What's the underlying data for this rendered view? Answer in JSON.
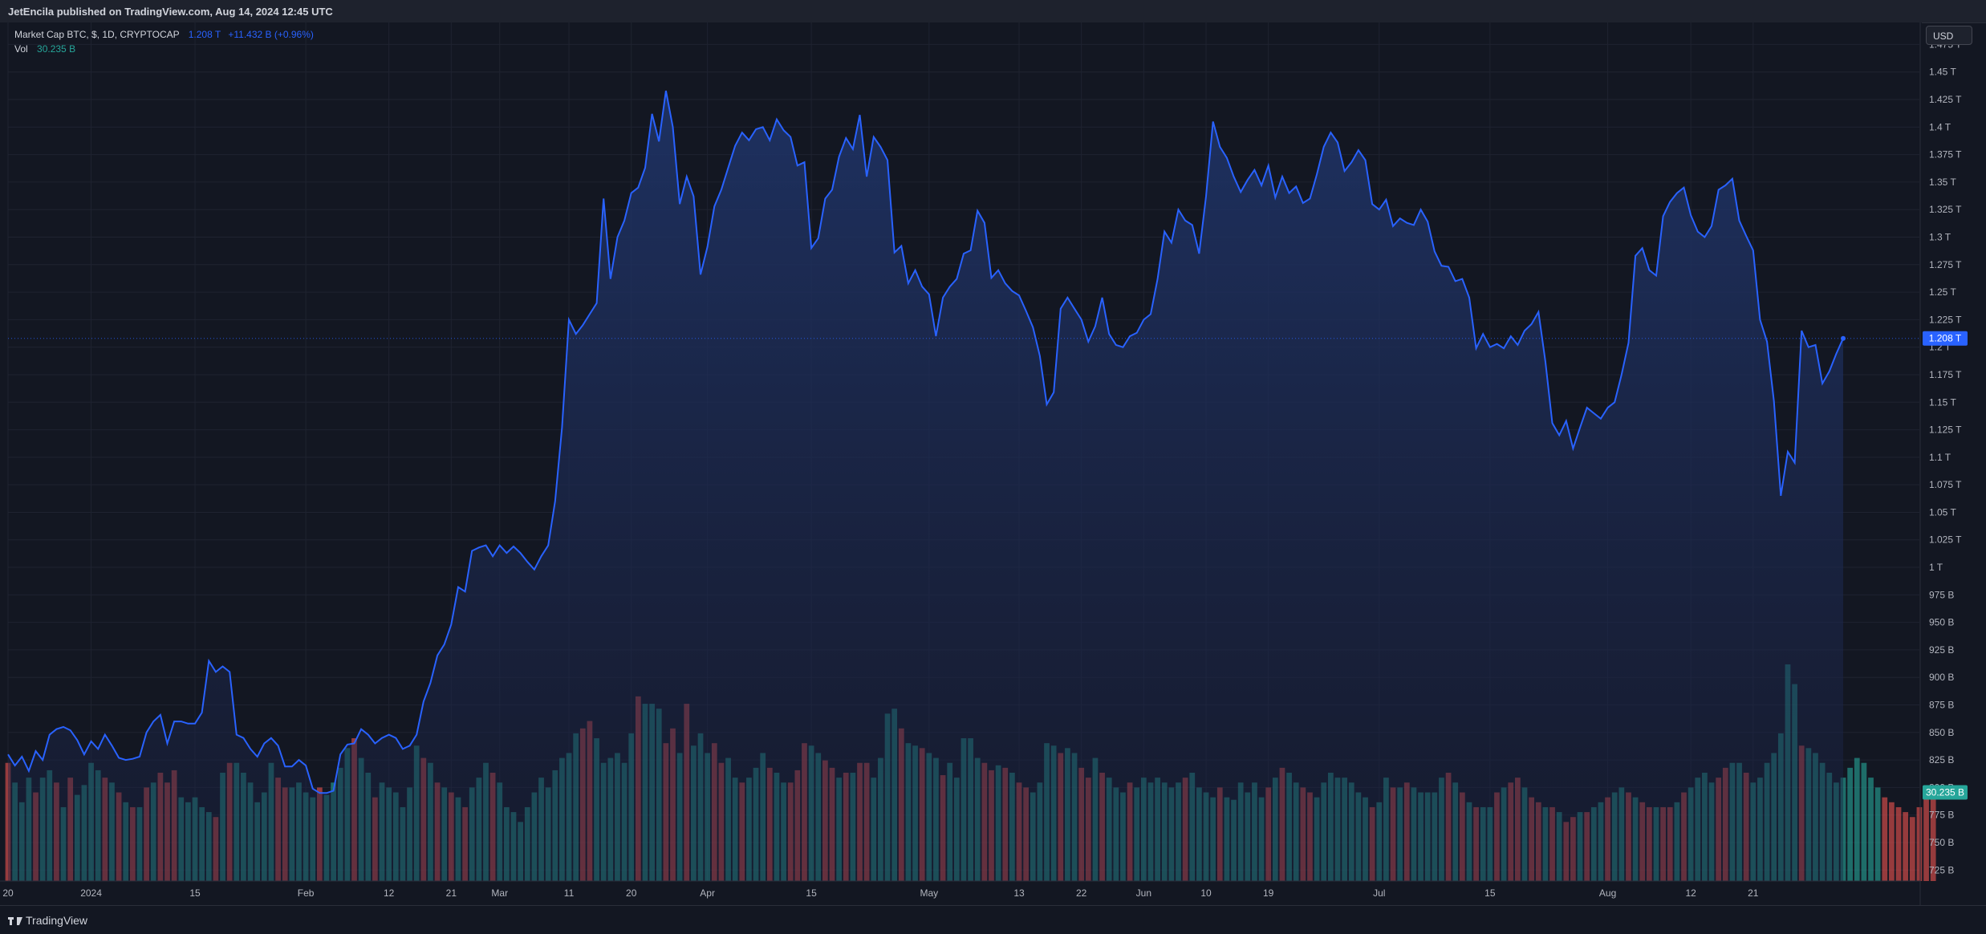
{
  "header": {
    "published_text": "JetEncila published on TradingView.com, Aug 14, 2024 12:45 UTC"
  },
  "legend": {
    "symbol": "Market Cap BTC, $, 1D, CRYPTOCAP",
    "last": "1.208 T",
    "change": "+11.432 B (+0.96%)",
    "vol_label": "Vol",
    "vol_value": "30.235 B"
  },
  "currency_button": "USD",
  "footer": {
    "brand": "TradingView"
  },
  "colors": {
    "line": "#2962ff",
    "area_top": "#1f3468",
    "up": "#26a69a",
    "down": "#ef5350",
    "bg": "#131722",
    "grid": "#1f2330",
    "text": "#b2b5be"
  },
  "chart_data": {
    "type": "area",
    "price_axis": {
      "labels": [
        "1.475 T",
        "1.45 T",
        "1.425 T",
        "1.4 T",
        "1.375 T",
        "1.35 T",
        "1.325 T",
        "1.3 T",
        "1.275 T",
        "1.25 T",
        "1.225 T",
        "1.2 T",
        "1.175 T",
        "1.15 T",
        "1.125 T",
        "1.1 T",
        "1.075 T",
        "1.05 T",
        "1.025 T",
        "1 T",
        "975 B",
        "950 B",
        "925 B",
        "900 B",
        "875 B",
        "850 B",
        "825 B",
        "800 B",
        "775 B",
        "750 B",
        "725 B"
      ],
      "values": [
        1475,
        1450,
        1425,
        1400,
        1375,
        1350,
        1325,
        1300,
        1275,
        1250,
        1225,
        1200,
        1175,
        1150,
        1125,
        1100,
        1075,
        1050,
        1025,
        1000,
        975,
        950,
        925,
        900,
        875,
        850,
        825,
        800,
        775,
        750,
        725
      ],
      "unit": "B",
      "range": [
        715,
        1495
      ],
      "last_label": "1.208 T",
      "last_value": 1208,
      "volume_label": "30.235 B"
    },
    "time_axis": {
      "labels": [
        "20",
        "2024",
        "15",
        "Feb",
        "12",
        "21",
        "Mar",
        "11",
        "20",
        "Apr",
        "15",
        "May",
        "13",
        "22",
        "Jun",
        "10",
        "19",
        "Jul",
        "15",
        "Aug",
        "12",
        "21"
      ],
      "day_index": [
        0,
        12,
        27,
        43,
        55,
        64,
        71,
        81,
        90,
        101,
        116,
        133,
        146,
        155,
        164,
        173,
        182,
        198,
        214,
        231,
        243,
        252
      ]
    },
    "price_series": {
      "name": "Market Cap BTC",
      "start_label": "Dec 15, 2023",
      "values": [
        830,
        820,
        828,
        815,
        833,
        825,
        848,
        853,
        855,
        852,
        843,
        830,
        842,
        835,
        848,
        838,
        827,
        825,
        826,
        828,
        850,
        860,
        866,
        840,
        860,
        860,
        858,
        858,
        868,
        915,
        905,
        910,
        905,
        848,
        845,
        835,
        828,
        840,
        845,
        838,
        819,
        819,
        825,
        820,
        799,
        795,
        795,
        797,
        830,
        839,
        840,
        853,
        848,
        840,
        845,
        848,
        845,
        835,
        838,
        848,
        878,
        895,
        920,
        930,
        948,
        982,
        978,
        1015,
        1018,
        1020,
        1010,
        1020,
        1013,
        1019,
        1013,
        1005,
        998,
        1010,
        1020,
        1060,
        1127,
        1225,
        1212,
        1220,
        1230,
        1240,
        1335,
        1262,
        1300,
        1315,
        1340,
        1345,
        1363,
        1412,
        1387,
        1433,
        1400,
        1330,
        1355,
        1337,
        1266,
        1291,
        1328,
        1343,
        1363,
        1383,
        1395,
        1388,
        1398,
        1400,
        1388,
        1407,
        1397,
        1391,
        1365,
        1368,
        1290,
        1299,
        1335,
        1343,
        1373,
        1390,
        1380,
        1411,
        1355,
        1391,
        1382,
        1370,
        1286,
        1292,
        1258,
        1270,
        1255,
        1248,
        1210,
        1245,
        1255,
        1262,
        1285,
        1288,
        1324,
        1313,
        1263,
        1270,
        1258,
        1251,
        1247,
        1233,
        1218,
        1192,
        1148,
        1159,
        1235,
        1245,
        1235,
        1225,
        1205,
        1219,
        1245,
        1212,
        1202,
        1200,
        1210,
        1213,
        1225,
        1230,
        1262,
        1305,
        1295,
        1325,
        1315,
        1311,
        1285,
        1337,
        1405,
        1382,
        1372,
        1355,
        1341,
        1352,
        1361,
        1347,
        1365,
        1336,
        1355,
        1340,
        1346,
        1331,
        1335,
        1357,
        1382,
        1395,
        1386,
        1360,
        1368,
        1379,
        1370,
        1330,
        1325,
        1334,
        1310,
        1317,
        1313,
        1311,
        1325,
        1314,
        1287,
        1274,
        1273,
        1260,
        1262,
        1245,
        1199,
        1212,
        1200,
        1203,
        1199,
        1210,
        1202,
        1215,
        1221,
        1232,
        1187,
        1131,
        1120,
        1133,
        1108,
        1127,
        1145,
        1140,
        1135,
        1145,
        1150,
        1175,
        1204,
        1283,
        1290,
        1270,
        1265,
        1319,
        1332,
        1340,
        1345,
        1320,
        1305,
        1300,
        1310,
        1343,
        1347,
        1353,
        1315,
        1301,
        1288,
        1225,
        1205,
        1151,
        1065,
        1105,
        1095,
        1215,
        1200,
        1202,
        1167,
        1178,
        1194,
        1208
      ]
    },
    "volume_series": {
      "name": "Vol",
      "up_days": [
        1,
        2,
        3,
        5,
        6,
        8,
        10,
        11,
        12,
        13,
        15,
        17,
        19,
        21,
        25,
        26,
        27,
        28,
        29,
        31,
        33,
        34,
        35,
        36,
        37,
        38,
        41,
        42,
        43,
        44,
        46,
        47,
        48,
        49,
        51,
        52,
        54,
        55,
        56,
        57,
        58,
        59,
        61,
        63,
        65,
        67,
        68,
        69,
        71,
        72,
        73,
        74,
        75,
        76,
        77,
        78,
        79,
        80,
        81,
        82,
        85,
        86,
        87,
        88,
        89,
        90,
        92,
        93,
        94,
        97,
        99,
        100,
        101,
        104,
        105,
        107,
        108,
        109,
        111,
        112,
        116,
        117,
        120,
        122,
        125,
        126,
        127,
        128,
        130,
        131,
        133,
        134,
        136,
        137,
        138,
        139,
        140,
        143,
        145,
        148,
        149,
        150,
        151,
        153,
        154,
        157,
        159,
        160,
        161,
        163,
        164,
        165,
        166,
        167,
        168,
        169,
        171,
        172,
        173,
        174,
        176,
        177,
        178,
        179,
        180,
        181,
        183,
        185,
        186,
        189,
        190,
        191,
        192,
        193,
        194,
        195,
        196,
        198,
        199,
        201,
        203,
        204,
        205,
        206,
        207,
        209,
        211,
        213,
        214,
        216,
        219,
        222,
        224,
        227,
        229,
        230,
        232,
        233,
        235,
        238,
        241,
        243,
        244,
        245,
        246,
        249,
        250,
        252,
        253,
        254,
        255,
        256,
        257,
        258,
        260,
        261,
        262,
        263,
        264,
        265,
        266,
        267,
        268,
        269,
        270
      ],
      "values": [
        48,
        40,
        32,
        42,
        36,
        42,
        45,
        40,
        30,
        42,
        35,
        39,
        48,
        45,
        42,
        40,
        36,
        32,
        30,
        30,
        38,
        40,
        44,
        40,
        45,
        34,
        32,
        34,
        30,
        28,
        26,
        44,
        48,
        48,
        44,
        40,
        32,
        36,
        48,
        42,
        38,
        38,
        40,
        36,
        34,
        38,
        35,
        40,
        46,
        54,
        58,
        50,
        44,
        34,
        40,
        38,
        36,
        30,
        38,
        55,
        50,
        48,
        40,
        38,
        36,
        34,
        30,
        38,
        42,
        48,
        44,
        40,
        30,
        28,
        24,
        30,
        36,
        42,
        38,
        45,
        50,
        52,
        60,
        62,
        65,
        58,
        48,
        50,
        52,
        48,
        60,
        75,
        72,
        72,
        70,
        56,
        62,
        52,
        72,
        55,
        60,
        52,
        56,
        48,
        50,
        42,
        40,
        42,
        46,
        52,
        46,
        44,
        40,
        40,
        45,
        56,
        55,
        52,
        49,
        46,
        42,
        44,
        44,
        48,
        48,
        42,
        50,
        68,
        70,
        62,
        56,
        55,
        54,
        52,
        50,
        43,
        48,
        42,
        58,
        58,
        50,
        48,
        45,
        47,
        46,
        44,
        40,
        38,
        36,
        40,
        56,
        55,
        52,
        54,
        52,
        46,
        42,
        50,
        44,
        42,
        38,
        36,
        40,
        38,
        42,
        40,
        42,
        40,
        38,
        40,
        42,
        44,
        38,
        36,
        34,
        38,
        34,
        33,
        40,
        36,
        40,
        34,
        38,
        42,
        46,
        44,
        40,
        38,
        36,
        34,
        40,
        44,
        42,
        42,
        40,
        36,
        34,
        30,
        32,
        42,
        38,
        38,
        40,
        38,
        36,
        36,
        36,
        42,
        44,
        40,
        36,
        32,
        30,
        30,
        30,
        36,
        38,
        40,
        42,
        38,
        34,
        32,
        30,
        30,
        28,
        24,
        26,
        28,
        28,
        30,
        32,
        34,
        36,
        38,
        36,
        34,
        32,
        30,
        30,
        30,
        30,
        32,
        36,
        38,
        42,
        44,
        40,
        42,
        46,
        48,
        48,
        44,
        40,
        42,
        48,
        52,
        60,
        88,
        80,
        55,
        54,
        52,
        48,
        44,
        40,
        42,
        46,
        50,
        48,
        42,
        38,
        34,
        32,
        30,
        28,
        26,
        30,
        34,
        36
      ]
    }
  }
}
